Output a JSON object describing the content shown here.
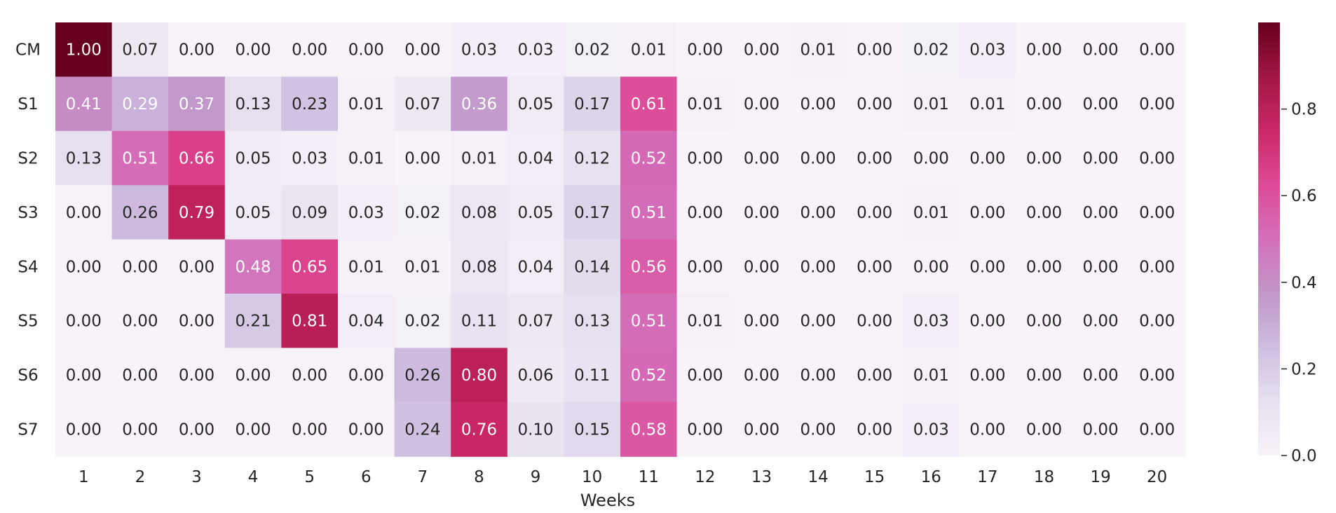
{
  "chart_data": {
    "type": "heatmap",
    "title": "",
    "xlabel": "Weeks",
    "ylabel": "",
    "x_categories": [
      "1",
      "2",
      "3",
      "4",
      "5",
      "6",
      "7",
      "8",
      "9",
      "10",
      "11",
      "12",
      "13",
      "14",
      "15",
      "16",
      "17",
      "18",
      "19",
      "20"
    ],
    "y_categories": [
      "CM",
      "S1",
      "S2",
      "S3",
      "S4",
      "S5",
      "S6",
      "S7"
    ],
    "values": [
      [
        1.0,
        0.07,
        0.0,
        0.0,
        0.0,
        0.0,
        0.0,
        0.03,
        0.03,
        0.02,
        0.01,
        0.0,
        0.0,
        0.01,
        0.0,
        0.02,
        0.03,
        0.0,
        0.0,
        0.0
      ],
      [
        0.41,
        0.29,
        0.37,
        0.13,
        0.23,
        0.01,
        0.07,
        0.36,
        0.05,
        0.17,
        0.61,
        0.01,
        0.0,
        0.0,
        0.0,
        0.01,
        0.01,
        0.0,
        0.0,
        0.0
      ],
      [
        0.13,
        0.51,
        0.66,
        0.05,
        0.03,
        0.01,
        0.0,
        0.01,
        0.04,
        0.12,
        0.52,
        0.0,
        0.0,
        0.0,
        0.0,
        0.0,
        0.0,
        0.0,
        0.0,
        0.0
      ],
      [
        0.0,
        0.26,
        0.79,
        0.05,
        0.09,
        0.03,
        0.02,
        0.08,
        0.05,
        0.17,
        0.51,
        0.0,
        0.0,
        0.0,
        0.0,
        0.01,
        0.0,
        0.0,
        0.0,
        0.0
      ],
      [
        0.0,
        0.0,
        0.0,
        0.48,
        0.65,
        0.01,
        0.01,
        0.08,
        0.04,
        0.14,
        0.56,
        0.0,
        0.0,
        0.0,
        0.0,
        0.0,
        0.0,
        0.0,
        0.0,
        0.0
      ],
      [
        0.0,
        0.0,
        0.0,
        0.21,
        0.81,
        0.04,
        0.02,
        0.11,
        0.07,
        0.13,
        0.51,
        0.01,
        0.0,
        0.0,
        0.0,
        0.03,
        0.0,
        0.0,
        0.0,
        0.0
      ],
      [
        0.0,
        0.0,
        0.0,
        0.0,
        0.0,
        0.0,
        0.26,
        0.8,
        0.06,
        0.11,
        0.52,
        0.0,
        0.0,
        0.0,
        0.0,
        0.01,
        0.0,
        0.0,
        0.0,
        0.0
      ],
      [
        0.0,
        0.0,
        0.0,
        0.0,
        0.0,
        0.0,
        0.24,
        0.76,
        0.1,
        0.15,
        0.58,
        0.0,
        0.0,
        0.0,
        0.0,
        0.03,
        0.0,
        0.0,
        0.0,
        0.0
      ]
    ],
    "value_format": "0.00",
    "colorbar": {
      "range": [
        0,
        1
      ],
      "ticks": [
        0.0,
        0.2,
        0.4,
        0.6,
        0.8
      ],
      "tick_labels": [
        "0.0",
        "0.2",
        "0.4",
        "0.6",
        "0.8"
      ],
      "colormap": [
        "#f7f3f9",
        "#e7e0ef",
        "#cebee0",
        "#c196c9",
        "#d46fbb",
        "#de4a96",
        "#cc2768",
        "#a11643",
        "#67001f"
      ]
    },
    "grid": false
  }
}
